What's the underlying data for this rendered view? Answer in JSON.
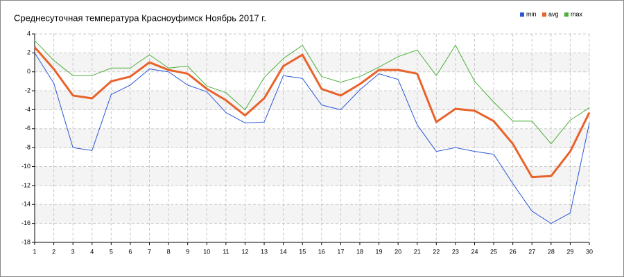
{
  "chart_data": {
    "type": "line",
    "title": "Среднесуточная температура Красноуфимск  Ноябрь 2017 г.",
    "x": [
      1,
      2,
      3,
      4,
      5,
      6,
      7,
      8,
      9,
      10,
      11,
      12,
      13,
      14,
      15,
      16,
      17,
      18,
      19,
      20,
      21,
      22,
      23,
      24,
      25,
      26,
      27,
      28,
      29,
      30
    ],
    "xlim": [
      1,
      30
    ],
    "xticks": [
      1,
      2,
      3,
      4,
      5,
      6,
      7,
      8,
      9,
      10,
      11,
      12,
      13,
      14,
      15,
      16,
      17,
      18,
      19,
      20,
      21,
      22,
      23,
      24,
      25,
      26,
      27,
      28,
      29,
      30
    ],
    "ylim": [
      -18,
      4
    ],
    "yticks": [
      -18,
      -16,
      -14,
      -12,
      -10,
      -8,
      -6,
      -4,
      -2,
      0,
      2,
      4
    ],
    "grid": true,
    "legend": "top-right",
    "series": [
      {
        "name": "min",
        "color": "#2a56d6",
        "values": [
          2,
          -1.2,
          -8,
          -8.3,
          -2.4,
          -1.4,
          0.3,
          0,
          -1.4,
          -2.1,
          -4.3,
          -5.4,
          -5.3,
          -0.4,
          -0.7,
          -3.5,
          -4,
          -1.9,
          -0.2,
          -0.8,
          -5.6,
          -8.4,
          -8,
          -8.4,
          -8.7,
          -11.8,
          -14.7,
          -16,
          -14.9,
          -5.4
        ]
      },
      {
        "name": "avg",
        "color": "#e8622a",
        "values": [
          2.6,
          0.3,
          -2.5,
          -2.8,
          -1,
          -0.5,
          1,
          0.2,
          -0.2,
          -1.8,
          -3,
          -4.6,
          -2.8,
          0.6,
          1.8,
          -1.8,
          -2.5,
          -1.3,
          0.2,
          0.2,
          -0.2,
          -5.3,
          -3.9,
          -4.1,
          -5.2,
          -7.6,
          -11.1,
          -11,
          -8.4,
          -4.3
        ]
      },
      {
        "name": "max",
        "color": "#4caf3a",
        "values": [
          3.3,
          1.2,
          -0.4,
          -0.4,
          0.4,
          0.4,
          1.8,
          0.4,
          0.6,
          -1.5,
          -2.2,
          -4,
          -0.6,
          1.4,
          2.8,
          -0.5,
          -1.1,
          -0.5,
          0.5,
          1.6,
          2.3,
          -0.4,
          2.8,
          -1,
          -3.2,
          -5.2,
          -5.2,
          -7.6,
          -5.1,
          -3.8
        ]
      }
    ]
  }
}
